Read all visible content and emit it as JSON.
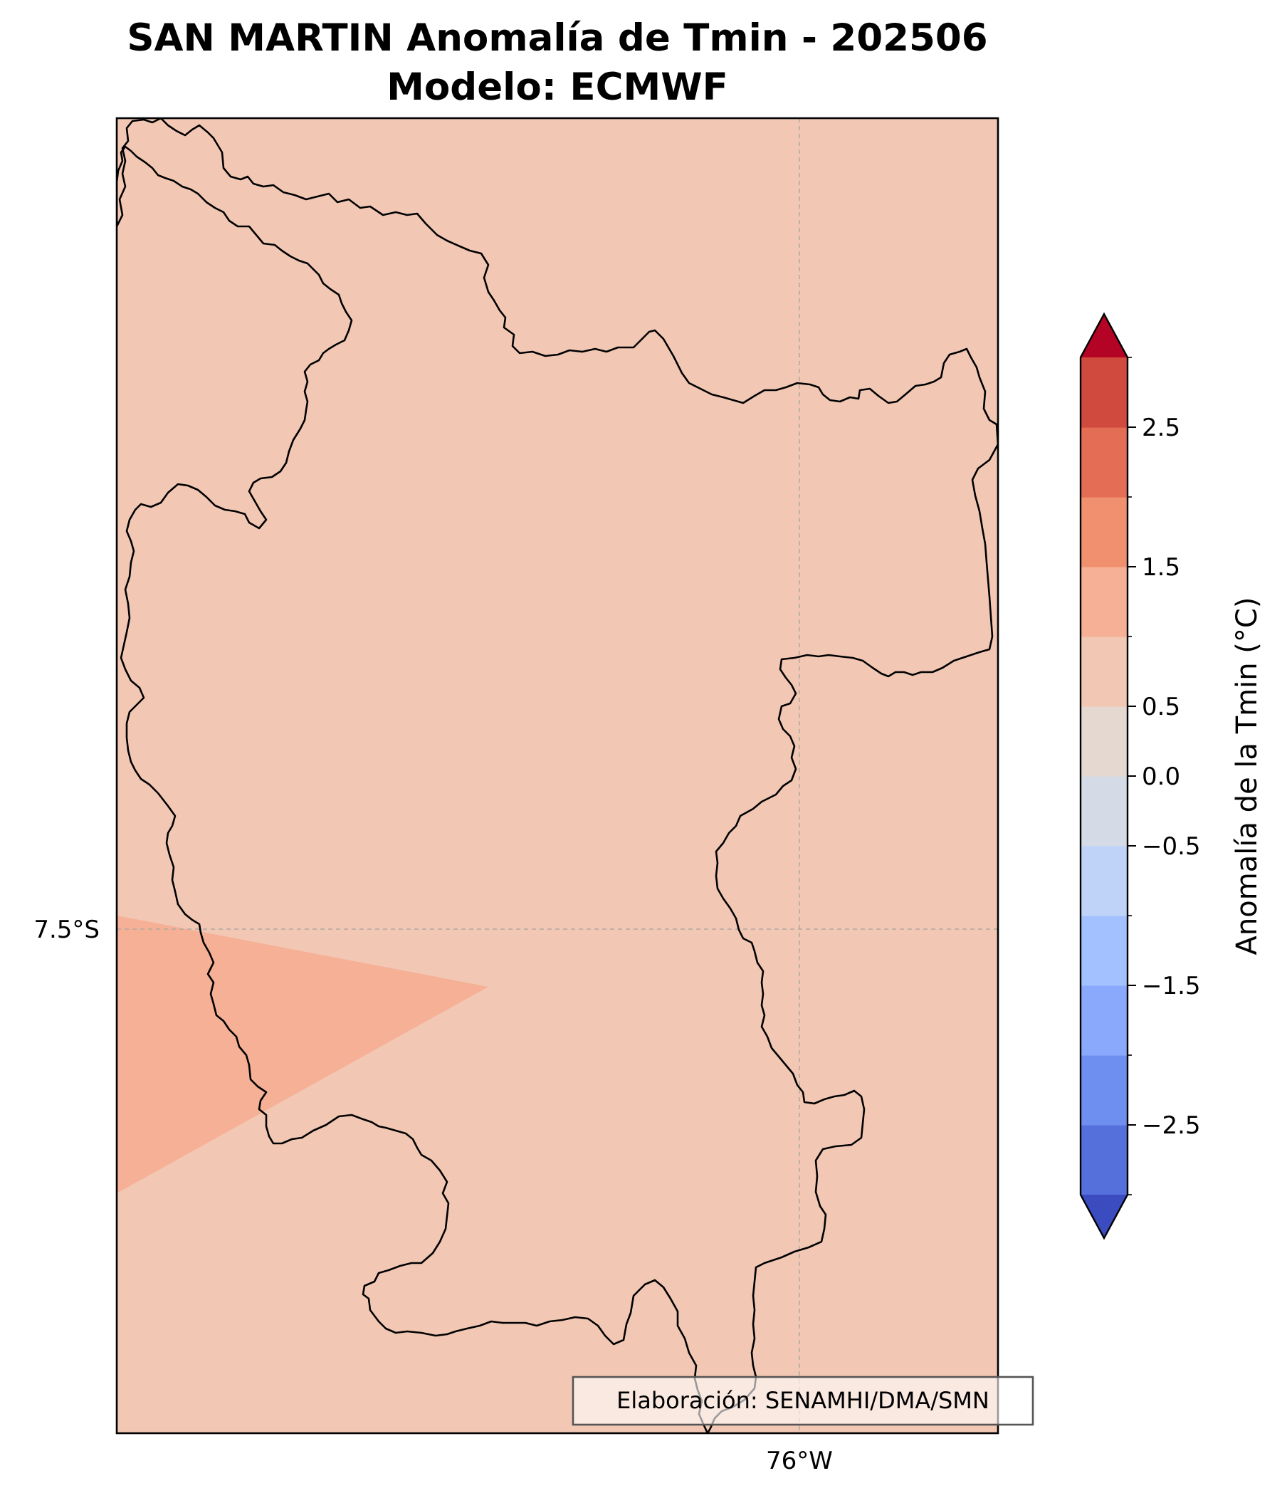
{
  "title": {
    "line1": "SAN MARTIN Anomalía de Tmin - 202506",
    "line2": "Modelo: ECMWF"
  },
  "map": {
    "region": "SAN MARTIN",
    "variable": "Anomalía de Tmin",
    "period": "202506",
    "model": "ECMWF",
    "background_color": "#f2c8b4",
    "warm_patch_color": "#f5b096",
    "boundary_color": "#000000",
    "gridline_color": "#b0a8a0",
    "lat_labels": [
      "7.5°S"
    ],
    "lon_labels": [
      "76°W"
    ],
    "credit": "Elaboración: SENAMHI/DMA/SMN"
  },
  "colorbar": {
    "label": "Anomalía de la Tmin (°C)",
    "min": -3.0,
    "max": 3.0,
    "step": 0.5,
    "extend": "both",
    "tick_labels": [
      "2.5",
      "1.5",
      "0.5",
      "0.0",
      "−0.5",
      "−1.5",
      "−2.5"
    ],
    "tick_values": [
      2.5,
      1.5,
      0.5,
      0.0,
      -0.5,
      -1.5,
      -2.5
    ],
    "colors_low_to_high": [
      "#3b4cc0",
      "#5670db",
      "#6f8ff0",
      "#8aa9fd",
      "#a3c1ff",
      "#bfd2f8",
      "#d4dbe6",
      "#e5d8d0",
      "#f2c8b4",
      "#f5b096",
      "#f0906f",
      "#e46d56",
      "#d14a3e",
      "#b40426"
    ]
  }
}
